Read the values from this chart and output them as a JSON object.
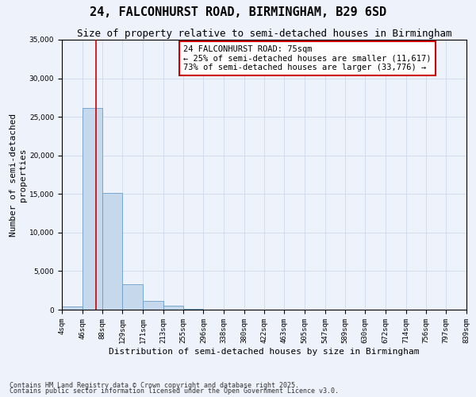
{
  "title": "24, FALCONHURST ROAD, BIRMINGHAM, B29 6SD",
  "subtitle": "Size of property relative to semi-detached houses in Birmingham",
  "xlabel": "Distribution of semi-detached houses by size in Birmingham",
  "ylabel": "Number of semi-detached\nproperties",
  "footnote1": "Contains HM Land Registry data © Crown copyright and database right 2025.",
  "footnote2": "Contains public sector information licensed under the Open Government Licence v3.0.",
  "annotation_title": "24 FALCONHURST ROAD: 75sqm",
  "annotation_line1": "← 25% of semi-detached houses are smaller (11,617)",
  "annotation_line2": "73% of semi-detached houses are larger (33,776) →",
  "property_size": 75,
  "bin_edges": [
    4,
    46,
    88,
    129,
    171,
    213,
    255,
    296,
    338,
    380,
    422,
    463,
    505,
    547,
    589,
    630,
    672,
    714,
    756,
    797,
    839
  ],
  "bin_heights": [
    400,
    26100,
    15100,
    3300,
    1150,
    500,
    100,
    0,
    0,
    0,
    0,
    0,
    0,
    0,
    0,
    0,
    0,
    0,
    0,
    0
  ],
  "bar_color": "#c5d8ec",
  "bar_edge_color": "#6b9ec8",
  "red_line_color": "#cc0000",
  "background_color": "#eef2fb",
  "annotation_box_color": "#ffffff",
  "annotation_box_edge": "#cc0000",
  "grid_color": "#c8d4e8",
  "ylim": [
    0,
    35000
  ],
  "title_fontsize": 11,
  "subtitle_fontsize": 9,
  "axis_fontsize": 8,
  "tick_fontsize": 6.5,
  "annotation_fontsize": 7.5,
  "footnote_fontsize": 6
}
